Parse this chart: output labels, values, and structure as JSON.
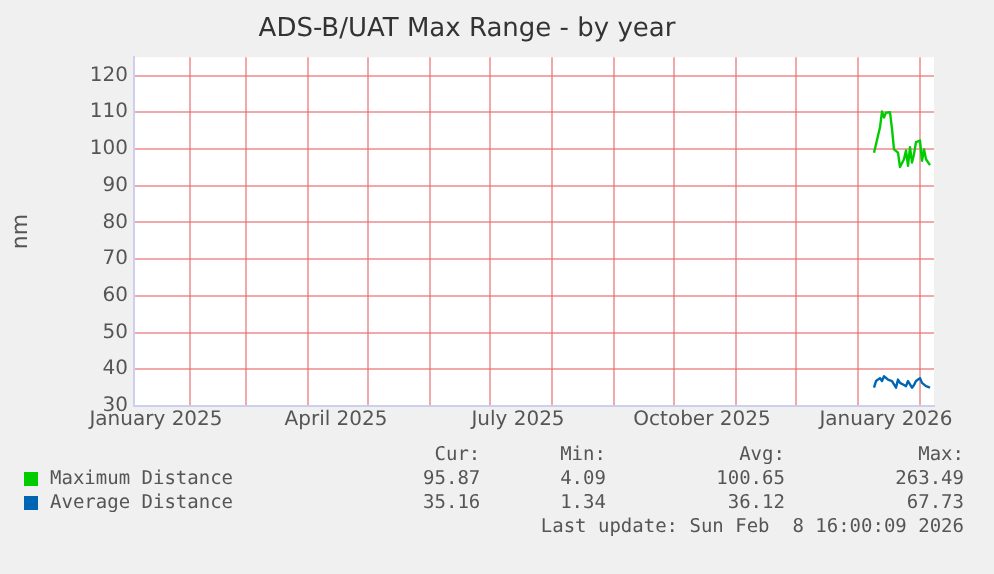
{
  "chart_data": {
    "type": "line",
    "title": "ADS-B/UAT Max Range - by year",
    "ylabel": "nm",
    "xlim": [
      "2025-01-04",
      "2026-02-08"
    ],
    "xticks": [
      {
        "value": "2025-01-15",
        "label": "January 2025"
      },
      {
        "value": "2025-02-01",
        "label": null
      },
      {
        "value": "2025-03-01",
        "label": null
      },
      {
        "value": "2025-04-01",
        "label": null
      },
      {
        "value": "2025-04-15",
        "label": "April 2025"
      },
      {
        "value": "2025-05-01",
        "label": null
      },
      {
        "value": "2025-06-01",
        "label": null
      },
      {
        "value": "2025-07-01",
        "label": null
      },
      {
        "value": "2025-07-15",
        "label": "July 2025"
      },
      {
        "value": "2025-08-01",
        "label": null
      },
      {
        "value": "2025-09-01",
        "label": null
      },
      {
        "value": "2025-10-01",
        "label": null
      },
      {
        "value": "2025-10-15",
        "label": "October 2025"
      },
      {
        "value": "2025-11-01",
        "label": null
      },
      {
        "value": "2025-12-01",
        "label": null
      },
      {
        "value": "2026-01-01",
        "label": null
      },
      {
        "value": "2026-01-15",
        "label": "January 2026"
      },
      {
        "value": "2026-02-01",
        "label": null
      }
    ],
    "ylim": [
      30,
      125
    ],
    "yticks": [
      30,
      40,
      50,
      60,
      70,
      80,
      90,
      100,
      110,
      120
    ],
    "grid": true,
    "legend": "bottom left",
    "marker": "none",
    "line_style": "solid",
    "series": [
      {
        "name": "Maximum Distance",
        "color": "#00cc00",
        "x": [
          "2026-01-09",
          "2026-01-12",
          "2026-01-13",
          "2026-01-14",
          "2026-01-15",
          "2026-01-17",
          "2026-01-18",
          "2026-01-19",
          "2026-01-21",
          "2026-01-22",
          "2026-01-24",
          "2026-01-25",
          "2026-01-26",
          "2026-01-27",
          "2026-01-28",
          "2026-01-29",
          "2026-01-30",
          "2026-02-01",
          "2026-02-02",
          "2026-02-03",
          "2026-02-04",
          "2026-02-06"
        ],
        "values": [
          99.0,
          105.9,
          110.2,
          108.6,
          109.9,
          110.0,
          105.5,
          99.9,
          99.0,
          95.1,
          97.2,
          99.6,
          95.4,
          100.5,
          96.3,
          98.6,
          101.9,
          102.3,
          96.8,
          99.9,
          97.2,
          95.6
        ]
      },
      {
        "name": "Average Distance",
        "color": "#0066b3",
        "x": [
          "2026-01-09",
          "2026-01-10",
          "2026-01-12",
          "2026-01-13",
          "2026-01-14",
          "2026-01-16",
          "2026-01-18",
          "2026-01-20",
          "2026-01-21",
          "2026-01-22",
          "2026-01-24",
          "2026-01-25",
          "2026-01-26",
          "2026-01-28",
          "2026-01-29",
          "2026-01-30",
          "2026-02-01",
          "2026-02-02",
          "2026-02-04",
          "2026-02-06"
        ],
        "values": [
          35.0,
          36.8,
          37.6,
          36.8,
          38.1,
          37.2,
          36.8,
          35.0,
          37.2,
          36.3,
          35.7,
          35.4,
          36.8,
          35.0,
          35.7,
          36.8,
          37.6,
          36.3,
          35.4,
          35.0
        ]
      }
    ],
    "annotations": [
      "Cur:",
      "Min:",
      "Avg:",
      "Max:",
      "95.87",
      "4.09",
      "100.65",
      "263.49",
      "35.16",
      "1.34",
      "36.12",
      "67.73",
      "Last update: Sun Feb  8 16:00:09 2026"
    ]
  }
}
